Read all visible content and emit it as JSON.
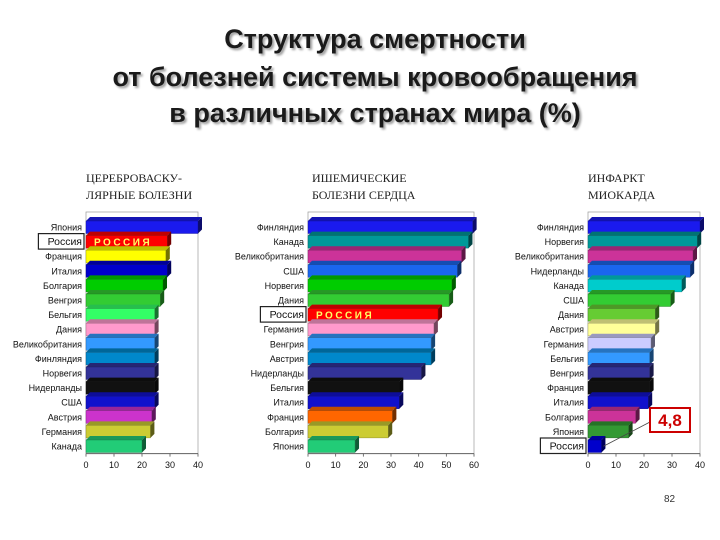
{
  "title_lines": [
    "Структура смертности",
    "от болезней системы кровообращения",
    "в различных странах мира (%)"
  ],
  "page_number": "82",
  "chart_data": [
    {
      "type": "bar",
      "orientation": "horizontal",
      "title": "ЦЕРЕБРОВАСКУ-\nЛЯРНЫЕ БОЛЕЗНИ",
      "xlim": [
        0,
        40
      ],
      "xticks": [
        "0",
        "10",
        "20",
        "30",
        "40"
      ],
      "highlight_label": "РОССИЯ",
      "categories": [
        "Япония",
        "Россия",
        "Франция",
        "Италия",
        "Болгария",
        "Венгрия",
        "Бельгия",
        "Дания",
        "Великобритания",
        "Финляндия",
        "Норвегия",
        "Нидерланды",
        "США",
        "Австрия",
        "Германия",
        "Канада"
      ],
      "values": [
        40,
        29,
        28.5,
        29,
        27.5,
        26.5,
        24.5,
        24.5,
        24.5,
        24.5,
        24.5,
        24.5,
        24.5,
        23.5,
        23,
        20
      ],
      "colors": [
        "#1a1aee",
        "#ff0000",
        "#ffff00",
        "#0000cc",
        "#00cc00",
        "#33cc33",
        "#33ff66",
        "#ff99cc",
        "#3399ff",
        "#0088cc",
        "#333399",
        "#111111",
        "#1111cc",
        "#cc33cc",
        "#cccc33",
        "#22cc77"
      ]
    },
    {
      "type": "bar",
      "orientation": "horizontal",
      "title": "ИШЕМИЧЕСКИЕ\nБОЛЕЗНИ СЕРДЦА",
      "xlim": [
        0,
        60
      ],
      "xticks": [
        "0",
        "10",
        "20",
        "30",
        "40",
        "50",
        "60"
      ],
      "highlight_label": "РОССИЯ",
      "categories": [
        "Финляндия",
        "Канада",
        "Великобритания",
        "США",
        "Норвегия",
        "Дания",
        "Россия",
        "Германия",
        "Венгрия",
        "Австрия",
        "Нидерланды",
        "Бельгия",
        "Италия",
        "Франция",
        "Болгария",
        "Япония"
      ],
      "values": [
        59.5,
        58,
        55.5,
        54,
        52,
        51,
        47,
        45.5,
        44.5,
        44.5,
        41,
        33,
        33,
        30.5,
        29,
        17
      ],
      "colors": [
        "#1a1aee",
        "#009999",
        "#cc3399",
        "#1a66ee",
        "#00cc00",
        "#33cc33",
        "#ff0000",
        "#ff99cc",
        "#3399ff",
        "#0088cc",
        "#333399",
        "#111111",
        "#1111cc",
        "#ff6600",
        "#cccc33",
        "#22cc77"
      ]
    },
    {
      "type": "bar",
      "orientation": "horizontal",
      "title": "ИНФАРКТ\nМИОКАРДА",
      "xlim": [
        0,
        40
      ],
      "xticks": [
        "0",
        "10",
        "20",
        "30",
        "40"
      ],
      "callout_value": "4,8",
      "categories": [
        "Финляндия",
        "Норвегия",
        "Великобритания",
        "Нидерланды",
        "Канада",
        "США",
        "Дания",
        "Австрия",
        "Германия",
        "Бельгия",
        "Венгрия",
        "Франция",
        "Италия",
        "Болгария",
        "Япония",
        "Россия"
      ],
      "values": [
        40,
        39,
        37.5,
        36.5,
        33.5,
        29.5,
        24,
        24,
        22.5,
        22,
        22,
        22,
        21.5,
        17,
        14.5,
        4.8
      ],
      "colors": [
        "#1a1aee",
        "#009999",
        "#cc3399",
        "#1a66ee",
        "#00cccc",
        "#33cc33",
        "#66cc33",
        "#ffff99",
        "#ccccff",
        "#3399ff",
        "#333399",
        "#111111",
        "#1111cc",
        "#cc3399",
        "#339933",
        "#0000cc"
      ]
    }
  ]
}
